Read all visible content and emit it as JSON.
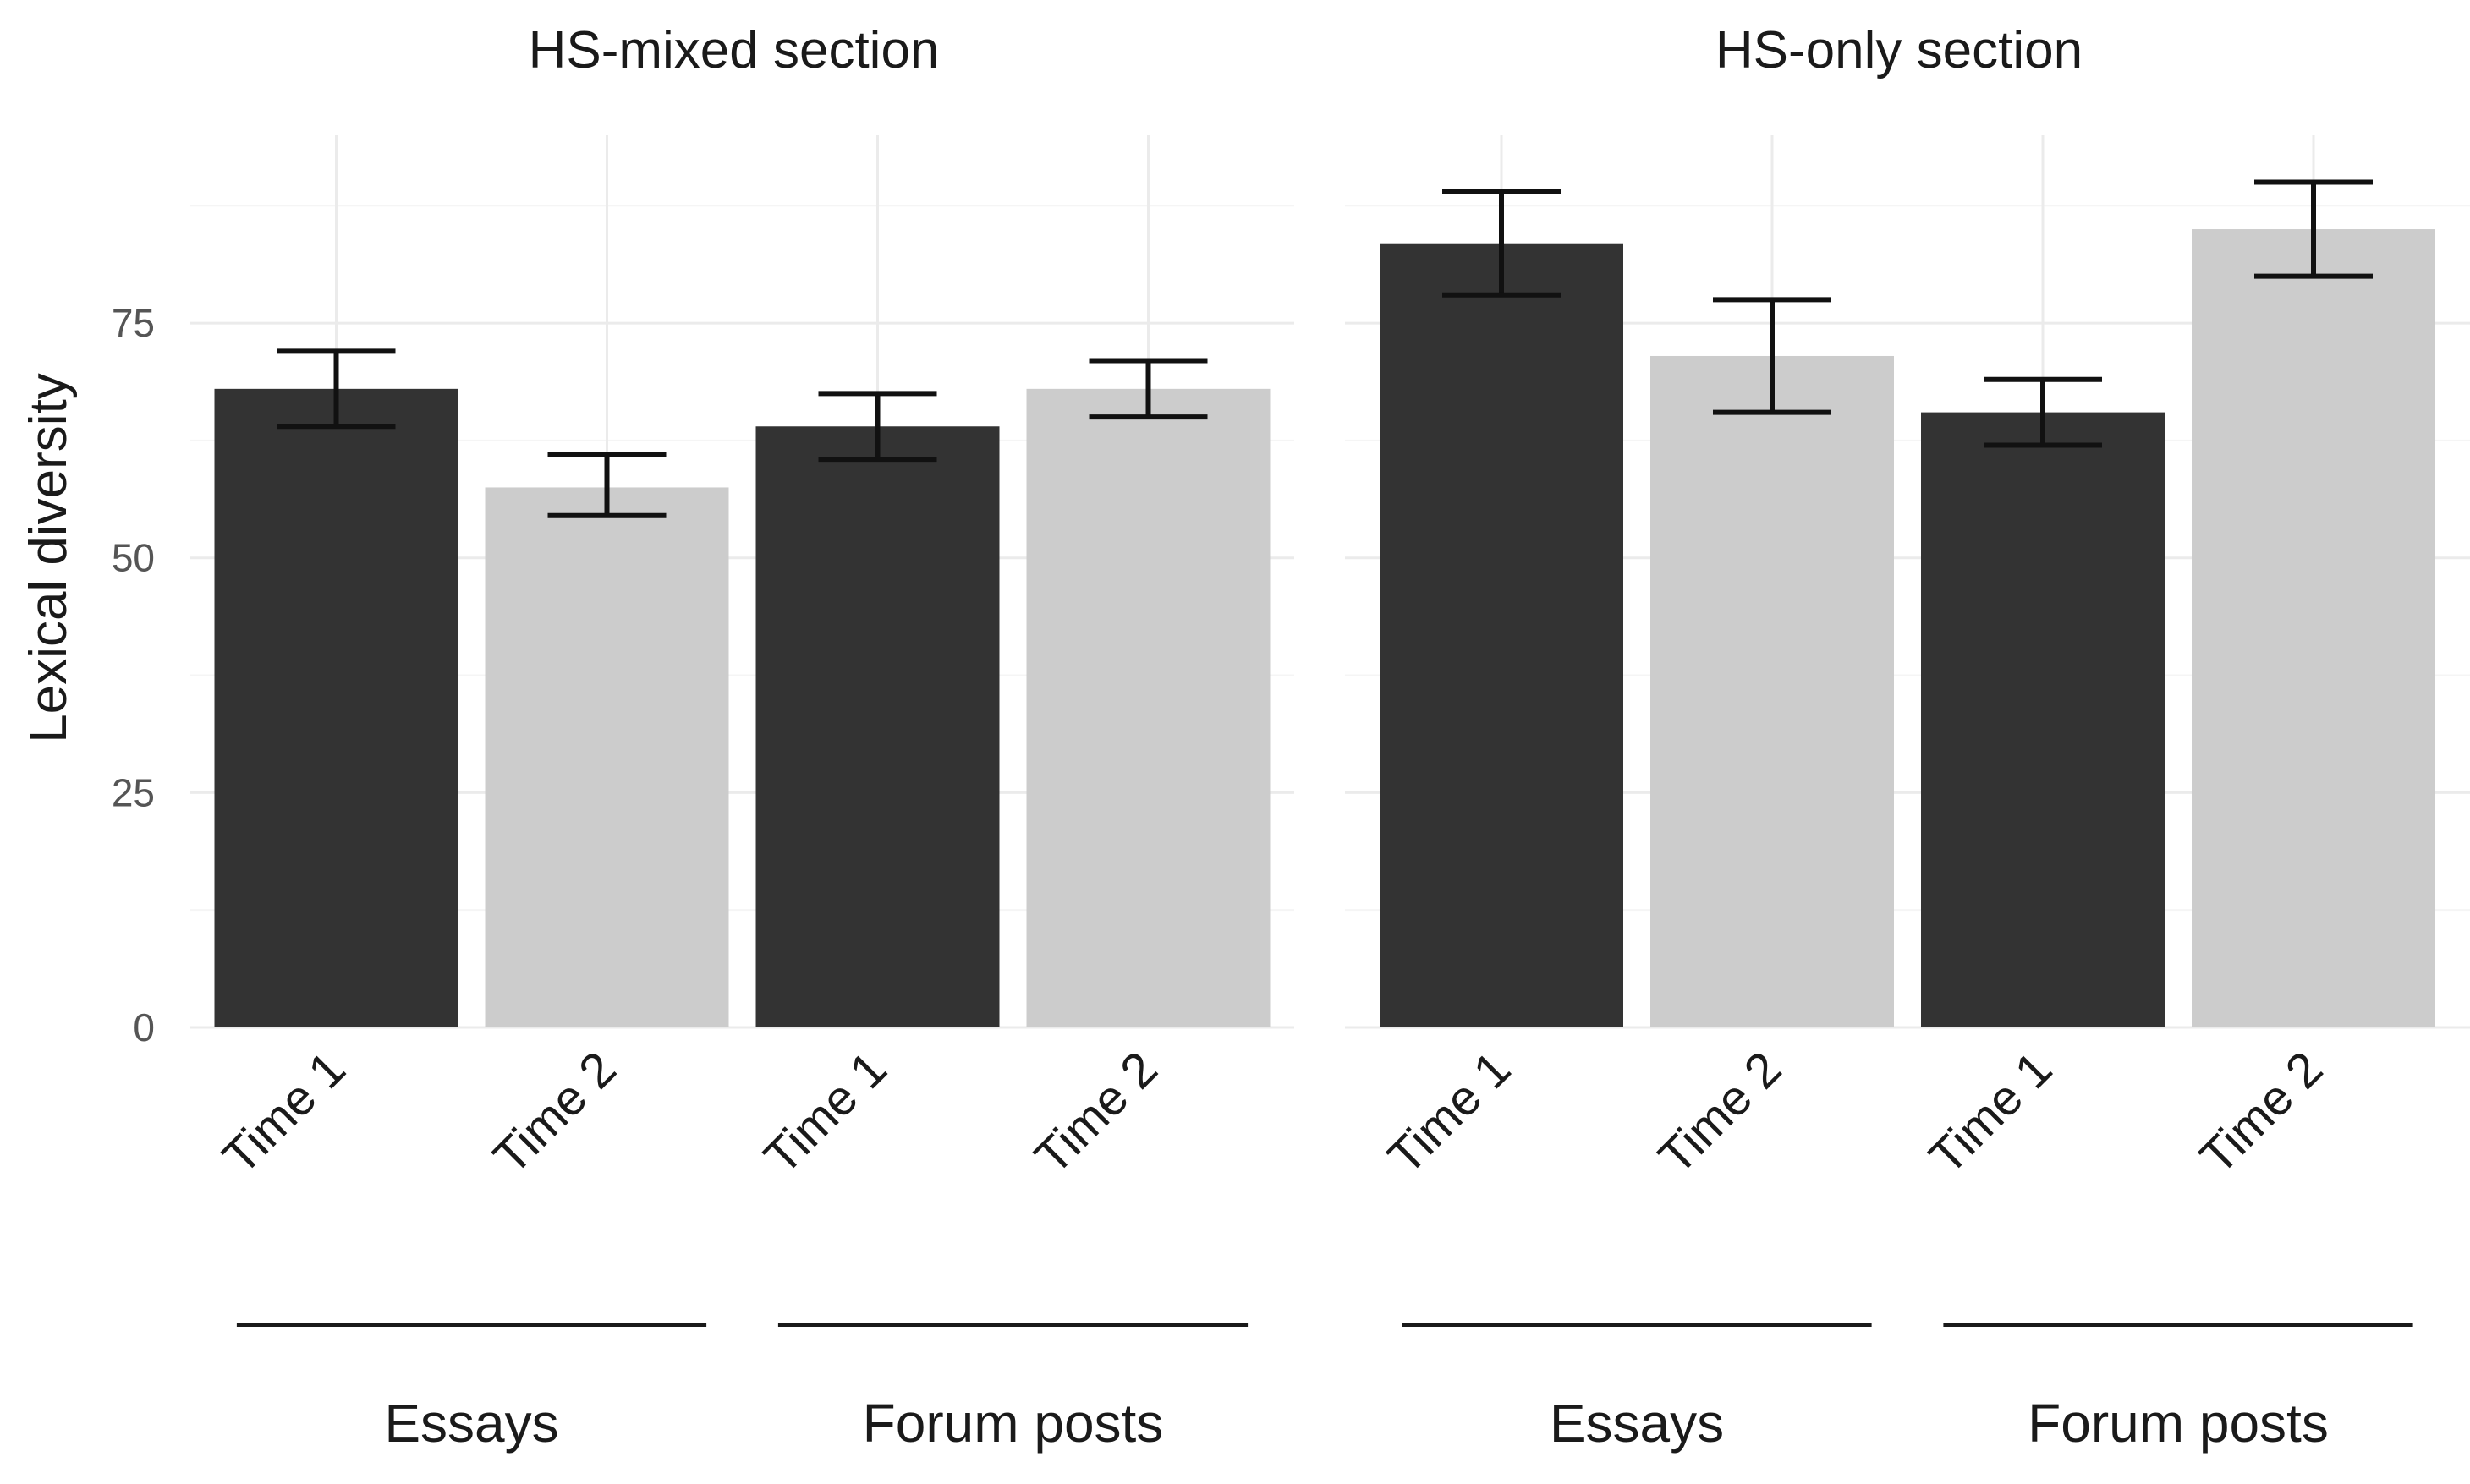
{
  "chart_data": {
    "type": "bar",
    "ylabel": "Lexical diversity",
    "ylim": [
      0,
      95
    ],
    "yticks": [
      0,
      25,
      50,
      75
    ],
    "grid": true,
    "fill_colors": {
      "Time 1": "#333333",
      "Time 2": "#cccccc"
    },
    "panels": [
      {
        "title": "HS-mixed section",
        "groups": [
          {
            "label": "Essays",
            "bars": [
              {
                "label": "Time 1",
                "value": 68,
                "err_low": 64,
                "err_high": 72
              },
              {
                "label": "Time 2",
                "value": 57.5,
                "err_low": 54.5,
                "err_high": 61
              }
            ]
          },
          {
            "label": "Forum posts",
            "bars": [
              {
                "label": "Time 1",
                "value": 64,
                "err_low": 60.5,
                "err_high": 67.5
              },
              {
                "label": "Time 2",
                "value": 68,
                "err_low": 65,
                "err_high": 71
              }
            ]
          }
        ]
      },
      {
        "title": "HS-only section",
        "groups": [
          {
            "label": "Essays",
            "bars": [
              {
                "label": "Time 1",
                "value": 83.5,
                "err_low": 78,
                "err_high": 89
              },
              {
                "label": "Time 2",
                "value": 71.5,
                "err_low": 65.5,
                "err_high": 77.5
              }
            ]
          },
          {
            "label": "Forum posts",
            "bars": [
              {
                "label": "Time 1",
                "value": 65.5,
                "err_low": 62,
                "err_high": 69
              },
              {
                "label": "Time 2",
                "value": 85,
                "err_low": 80,
                "err_high": 90
              }
            ]
          }
        ]
      }
    ]
  }
}
